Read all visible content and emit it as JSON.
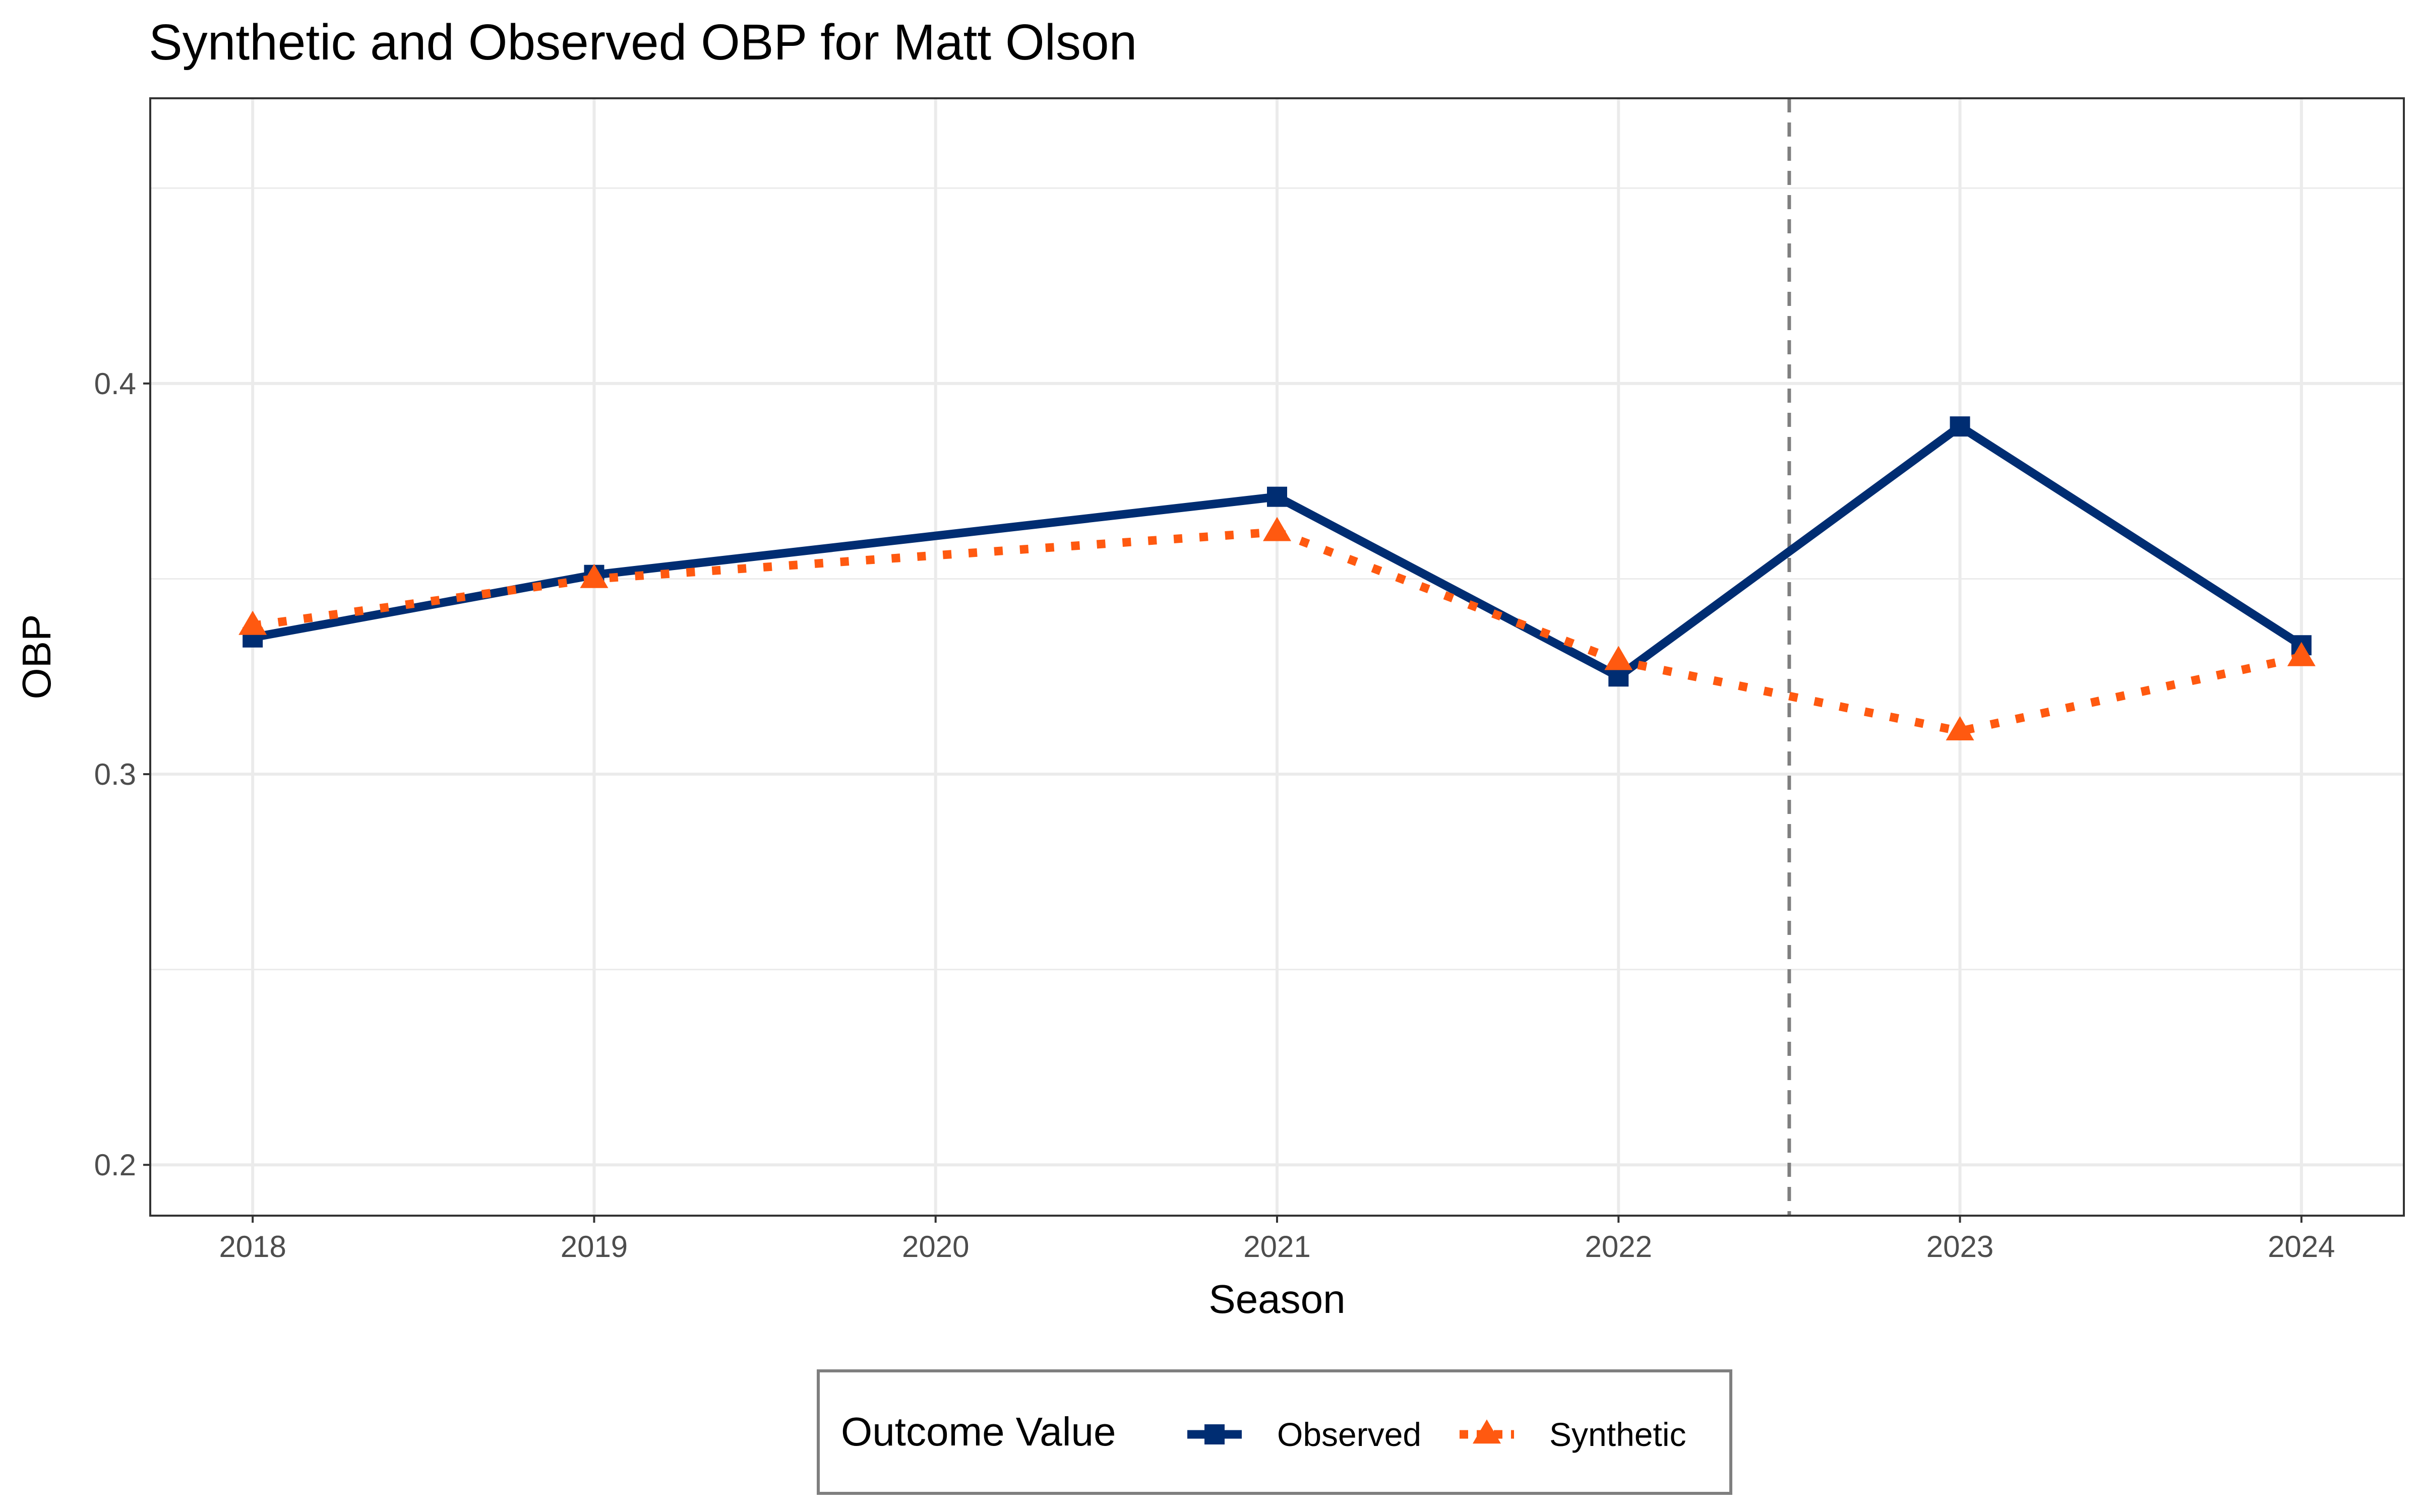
{
  "chart_data": {
    "type": "line",
    "title": "Synthetic and Observed OBP for Matt Olson",
    "xlabel": "Season",
    "ylabel": "OBP",
    "x": [
      2018,
      2019,
      2020,
      2021,
      2022,
      2023,
      2024
    ],
    "x_ticks": [
      "2018",
      "2019",
      "2020",
      "2021",
      "2022",
      "2023",
      "2024"
    ],
    "y_ticks": [
      "0.2",
      "0.3",
      "0.4"
    ],
    "xlim": [
      2017.7,
      2024.3
    ],
    "ylim": [
      0.187,
      0.473
    ],
    "reference_line_x": 2022.5,
    "grid": true,
    "legend_position": "bottom",
    "legend_title": "Outcome Value",
    "series": [
      {
        "name": "Observed",
        "color": "#002D72",
        "line_style": "solid",
        "marker": "square",
        "points": [
          [
            2018,
            0.335
          ],
          [
            2019,
            0.351
          ],
          [
            2021,
            0.371
          ],
          [
            2022,
            0.325
          ],
          [
            2023,
            0.389
          ],
          [
            2024,
            0.333
          ]
        ]
      },
      {
        "name": "Synthetic",
        "color": "#FF5910",
        "line_style": "dotted",
        "marker": "triangle",
        "points": [
          [
            2018,
            0.338
          ],
          [
            2019,
            0.35
          ],
          [
            2021,
            0.362
          ],
          [
            2022,
            0.329
          ],
          [
            2023,
            0.311
          ],
          [
            2024,
            0.33
          ]
        ]
      }
    ]
  }
}
